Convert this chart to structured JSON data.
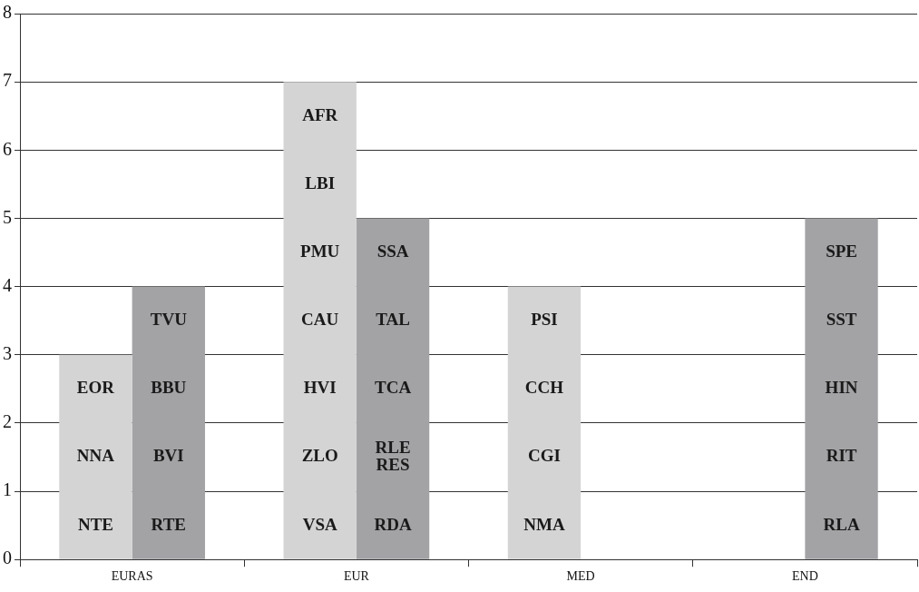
{
  "chart_data": {
    "type": "bar",
    "categories": [
      "EURAS",
      "EUR",
      "MED",
      "END"
    ],
    "series": [
      {
        "color": "#d4d4d4",
        "values": [
          3,
          7,
          4,
          null
        ]
      },
      {
        "color": "#a3a3a6",
        "values": [
          4,
          5,
          null,
          5
        ]
      }
    ],
    "ylim": [
      0,
      8
    ],
    "yticks": [
      0,
      1,
      2,
      3,
      4,
      5,
      6,
      7,
      8
    ],
    "grid": "y",
    "legend": false,
    "annotations": [
      {
        "text": "NTE",
        "x": "EURAS",
        "y": 0.5
      },
      {
        "text": "NNA",
        "x": "EURAS",
        "y": 1.5
      },
      {
        "text": "EOR",
        "x": "EURAS",
        "y": 2.5
      },
      {
        "text": "RTE",
        "x": "EURAS",
        "y": 0.5
      },
      {
        "text": "BVI",
        "x": "EURAS",
        "y": 1.5
      },
      {
        "text": "BBU",
        "x": "EURAS",
        "y": 2.5
      },
      {
        "text": "TVU",
        "x": "EURAS",
        "y": 3.5
      },
      {
        "text": "VSA",
        "x": "EUR",
        "y": 0.5
      },
      {
        "text": "ZLO",
        "x": "EUR",
        "y": 1.5
      },
      {
        "text": "HVI",
        "x": "EUR",
        "y": 2.5
      },
      {
        "text": "CAU",
        "x": "EUR",
        "y": 3.5
      },
      {
        "text": "PMU",
        "x": "EUR",
        "y": 4.5
      },
      {
        "text": "LBI",
        "x": "EUR",
        "y": 5.5
      },
      {
        "text": "AFR",
        "x": "EUR",
        "y": 6.5
      },
      {
        "text": "RDA",
        "x": "EUR",
        "y": 0.5
      },
      {
        "text": "RLE\nRES",
        "x": "EUR",
        "y": 1.5
      },
      {
        "text": "TCA",
        "x": "EUR",
        "y": 2.5
      },
      {
        "text": "TAL",
        "x": "EUR",
        "y": 3.5
      },
      {
        "text": "SSA",
        "x": "EUR",
        "y": 4.5
      },
      {
        "text": "NMA",
        "x": "MED",
        "y": 0.5
      },
      {
        "text": "CGI",
        "x": "MED",
        "y": 1.5
      },
      {
        "text": "CCH",
        "x": "MED",
        "y": 2.5
      },
      {
        "text": "PSI",
        "x": "MED",
        "y": 3.5
      },
      {
        "text": "RLA",
        "x": "END",
        "y": 0.5
      },
      {
        "text": "RIT",
        "x": "END",
        "y": 1.5
      },
      {
        "text": "HIN",
        "x": "END",
        "y": 2.5
      },
      {
        "text": "SST",
        "x": "END",
        "y": 3.5
      },
      {
        "text": "SPE",
        "x": "END",
        "y": 4.5
      }
    ]
  }
}
